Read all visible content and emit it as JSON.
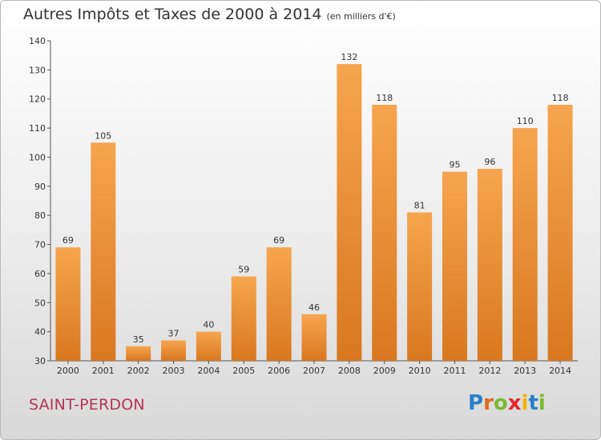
{
  "title": "Autres Impôts et Taxes de 2000 à 2014",
  "unit": "(en milliers d'€)",
  "commune": "SAINT-PERDON",
  "logo": {
    "letters": [
      "P",
      "r",
      "o",
      "x",
      "i",
      "t",
      "i"
    ],
    "colors": [
      "#2a7fc9",
      "#e06a1d",
      "#7cb931",
      "#e3262f",
      "#f0b400",
      "#2a7fc9",
      "#7cb931"
    ]
  },
  "chart_data": {
    "type": "bar",
    "categories": [
      "2000",
      "2001",
      "2002",
      "2003",
      "2004",
      "2005",
      "2006",
      "2007",
      "2008",
      "2009",
      "2010",
      "2011",
      "2012",
      "2013",
      "2014"
    ],
    "values": [
      69,
      105,
      35,
      37,
      40,
      59,
      69,
      46,
      132,
      118,
      81,
      95,
      96,
      110,
      118
    ],
    "ylim": [
      30,
      140
    ],
    "yticks": [
      30,
      40,
      50,
      60,
      70,
      80,
      90,
      100,
      110,
      120,
      130,
      140
    ],
    "grid": false,
    "bar_color": "#f0a04b"
  }
}
